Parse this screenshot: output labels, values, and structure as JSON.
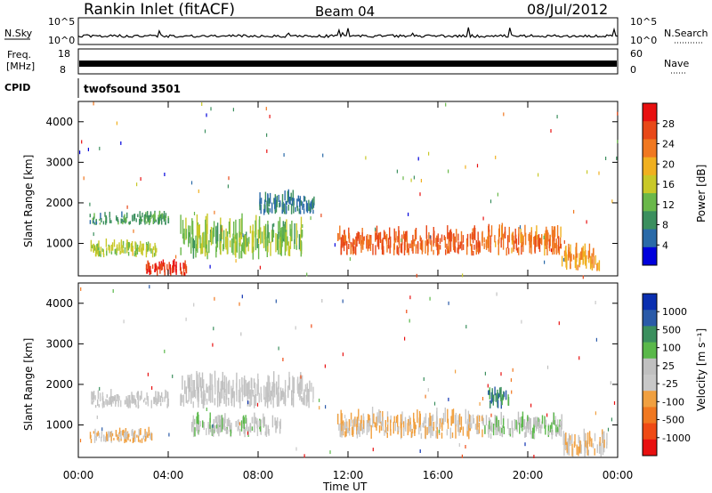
{
  "header": {
    "station": "Rankin Inlet (fitACF)",
    "beam": "Beam 04",
    "date": "08/Jul/2012"
  },
  "strips": {
    "nsky_label": "N.Sky",
    "nsky_ticks": [
      "10^5",
      "10^0"
    ],
    "nsearch_label": "N.Search",
    "nsearch_ticks": [
      "10^5",
      "10^0"
    ],
    "freq_label_1": "Freq.",
    "freq_label_2": "[MHz]",
    "freq_ticks": [
      "18",
      "8"
    ],
    "nave_label": "Nave",
    "nave_ticks": [
      "60",
      "0"
    ],
    "cpid_label": "CPID",
    "cpid_value": "twofsound 3501"
  },
  "colors": {
    "axis": "#000000",
    "power_scale": [
      "#0000dc",
      "#2a6aa8",
      "#3b8f5e",
      "#6ab84a",
      "#c8c828",
      "#f0b020",
      "#f07820",
      "#e84818",
      "#e81010"
    ],
    "velocity_scale": [
      "#e81010",
      "#ef4a14",
      "#f07820",
      "#f0a040",
      "#c8c8c8",
      "#c0c0c0",
      "#5ab84a",
      "#3b8f5e",
      "#2a5aa8",
      "#0a2fb0"
    ]
  },
  "chart_data": [
    {
      "type": "heatmap",
      "title": "",
      "xlabel": "",
      "ylabel": "Slant Range [km]",
      "x_ticks": [
        "00:00",
        "04:00",
        "08:00",
        "12:00",
        "16:00",
        "20:00",
        "00:00"
      ],
      "y_ticks": [
        "1000",
        "2000",
        "3000",
        "4000"
      ],
      "ylim": [
        200,
        4500
      ],
      "xlim": [
        "00:00",
        "24:00"
      ],
      "colorbar_label": "Power [dB]",
      "colorbar_ticks": [
        "4",
        "8",
        "12",
        "16",
        "20",
        "24",
        "28"
      ],
      "colorbar_range": [
        0,
        30
      ],
      "bands": [
        {
          "t0": 0.5,
          "t1": 4.0,
          "r0": 1450,
          "r1": 1800,
          "value": 9
        },
        {
          "t0": 0.5,
          "t1": 3.5,
          "r0": 650,
          "r1": 1100,
          "value": 14
        },
        {
          "t0": 3.0,
          "t1": 4.8,
          "r0": 200,
          "r1": 600,
          "value": 26
        },
        {
          "t0": 4.5,
          "t1": 10.0,
          "r0": 600,
          "r1": 1700,
          "value": 12
        },
        {
          "t0": 8.0,
          "t1": 10.5,
          "r0": 1700,
          "r1": 2300,
          "value": 6
        },
        {
          "t0": 11.5,
          "t1": 18.0,
          "r0": 700,
          "r1": 1400,
          "value": 24
        },
        {
          "t0": 18.0,
          "t1": 21.5,
          "r0": 700,
          "r1": 1500,
          "value": 22
        },
        {
          "t0": 21.5,
          "t1": 23.2,
          "r0": 300,
          "r1": 1000,
          "value": 20
        }
      ]
    },
    {
      "type": "heatmap",
      "title": "",
      "xlabel": "Time UT",
      "ylabel": "Slant Range [km]",
      "x_ticks": [
        "00:00",
        "04:00",
        "08:00",
        "12:00",
        "16:00",
        "20:00",
        "00:00"
      ],
      "y_ticks": [
        "1000",
        "2000",
        "3000",
        "4000"
      ],
      "ylim": [
        200,
        4500
      ],
      "xlim": [
        "00:00",
        "24:00"
      ],
      "colorbar_label": "Velocity [m s⁻¹]",
      "colorbar_ticks": [
        "-1000",
        "-500",
        "-100",
        "-25",
        "25",
        "100",
        "500",
        "1000"
      ],
      "colorbar_range": [
        -1500,
        1500
      ],
      "bands": [
        {
          "t0": 0.5,
          "t1": 4.0,
          "r0": 1400,
          "r1": 1850,
          "value": 0
        },
        {
          "t0": 0.5,
          "t1": 3.3,
          "r0": 550,
          "r1": 950,
          "value": -300
        },
        {
          "t0": 4.5,
          "t1": 10.5,
          "r0": 1400,
          "r1": 2300,
          "value": 0
        },
        {
          "t0": 5.0,
          "t1": 9.0,
          "r0": 700,
          "r1": 1300,
          "value": 150
        },
        {
          "t0": 11.5,
          "t1": 18.0,
          "r0": 650,
          "r1": 1400,
          "value": -300
        },
        {
          "t0": 18.2,
          "t1": 19.2,
          "r0": 1400,
          "r1": 2000,
          "value": 800
        },
        {
          "t0": 18.0,
          "t1": 21.5,
          "r0": 650,
          "r1": 1300,
          "value": 200
        },
        {
          "t0": 21.5,
          "t1": 23.5,
          "r0": 200,
          "r1": 900,
          "value": -200
        }
      ]
    }
  ]
}
